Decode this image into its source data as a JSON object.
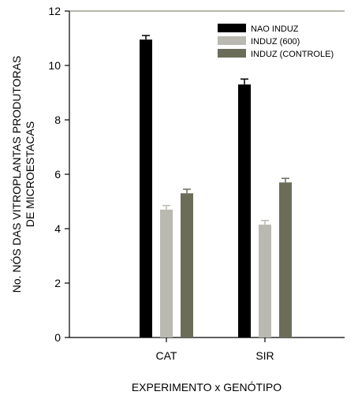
{
  "chart_data": {
    "type": "bar",
    "title": "",
    "xlabel": "EXPERIMENTO x GENÓTIPO",
    "ylabel_lines": [
      "No. NÓS DAS VITROPLANTAS PRODUTORAS",
      "DE MICROESTACAS"
    ],
    "categories": [
      "CAT",
      "SIR"
    ],
    "ylim": [
      0,
      12
    ],
    "yticks": [
      0,
      2,
      4,
      6,
      8,
      10,
      12
    ],
    "grid": false,
    "legend_position": "top-right",
    "series": [
      {
        "name": "NAO INDUZ",
        "color": "#000000",
        "values": [
          10.95,
          9.3
        ],
        "errors": [
          0.15,
          0.2
        ]
      },
      {
        "name": "INDUZ (600)",
        "color": "#b9b9b1",
        "values": [
          4.7,
          4.15
        ],
        "errors": [
          0.15,
          0.15
        ]
      },
      {
        "name": "INDUZ (CONTROLE)",
        "color": "#6b6d59",
        "values": [
          5.3,
          5.7
        ],
        "errors": [
          0.15,
          0.15
        ]
      }
    ]
  }
}
